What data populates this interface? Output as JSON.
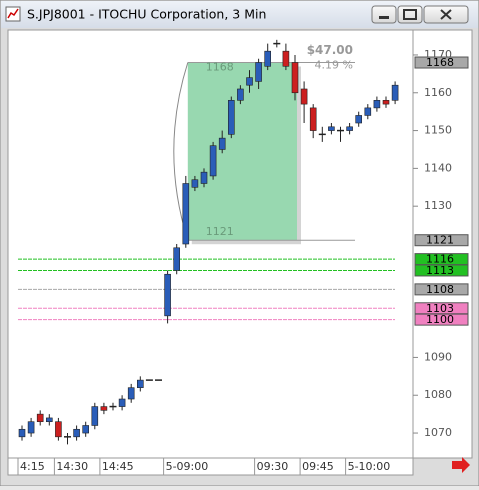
{
  "chart_data": {
    "type": "candlestick",
    "title": "S.JPJ8001 - ITOCHU Corporation, 3 Min",
    "categories": [
      "4:15",
      null,
      null,
      null,
      "14:30",
      null,
      null,
      null,
      null,
      "14:45",
      null,
      null,
      null,
      null,
      null,
      null,
      "5-09:00",
      null,
      null,
      null,
      null,
      null,
      null,
      null,
      null,
      null,
      "09:30",
      null,
      null,
      null,
      null,
      "09:45",
      null,
      null,
      null,
      null,
      "5-10:00",
      null,
      null,
      null,
      null,
      null
    ],
    "open": [
      1069,
      1070,
      1075,
      1073,
      1073,
      1069,
      1069,
      1070,
      1072,
      1077,
      1077,
      1077,
      1079,
      1082,
      1084,
      1084,
      1101,
      1113,
      1120,
      1135,
      1136,
      1138,
      1145,
      1149,
      1158,
      1162,
      1163,
      1167,
      1173,
      1171,
      1168,
      1161,
      1156,
      1149,
      1150,
      1150,
      1150,
      1152,
      1154,
      1156,
      1158,
      1158
    ],
    "high": [
      1072,
      1074,
      1076,
      1075,
      1074,
      1070,
      1072,
      1073,
      1078,
      1078,
      1078,
      1080,
      1083,
      1085,
      1084,
      1084,
      1113,
      1120,
      1138,
      1138,
      1140,
      1147,
      1150,
      1159,
      1162,
      1166,
      1169,
      1173,
      1174,
      1173,
      1170,
      1163,
      1157,
      1151,
      1152,
      1151,
      1152,
      1155,
      1157,
      1159,
      1159,
      1163
    ],
    "low": [
      1068,
      1069,
      1072,
      1072,
      1068,
      1067,
      1068,
      1069,
      1071,
      1075,
      1076,
      1076,
      1078,
      1081,
      1084,
      1084,
      1099,
      1112,
      1119,
      1134,
      1135,
      1137,
      1144,
      1148,
      1157,
      1160,
      1161,
      1166,
      1172,
      1166,
      1158,
      1152,
      1148,
      1147,
      1149,
      1147,
      1149,
      1151,
      1153,
      1155,
      1156,
      1157
    ],
    "close": [
      1071,
      1073,
      1073,
      1074,
      1069,
      1069,
      1071,
      1072,
      1077,
      1076,
      1077,
      1079,
      1082,
      1084,
      1084,
      1084,
      1112,
      1119,
      1136,
      1137,
      1139,
      1146,
      1148,
      1158,
      1161,
      1164,
      1168,
      1171,
      1173,
      1167,
      1160,
      1157,
      1150,
      1149,
      1151,
      1150,
      1151,
      1154,
      1156,
      1158,
      1157,
      1162
    ],
    "up_color": "#2a5db8",
    "down_color": "#cc1f1f",
    "ylim": [
      1063.4,
      1176.6
    ],
    "yticks": [
      1070,
      1080,
      1090,
      1130,
      1140,
      1150,
      1160,
      1170
    ],
    "measure": {
      "start": 1121,
      "end": 1168,
      "change": "$47.00",
      "percent": "4.19 %"
    },
    "levels": [
      {
        "value": 1168,
        "color": "#a8a8a8",
        "line": false
      },
      {
        "value": 1121,
        "color": "#a8a8a8",
        "line": false
      },
      {
        "value": 1116,
        "color": "#22c022",
        "line": true
      },
      {
        "value": 1113,
        "color": "#22c022",
        "line": true
      },
      {
        "value": 1108,
        "color": "#a8a8a8",
        "line": true
      },
      {
        "value": 1103,
        "color": "#f080c0",
        "line": true
      },
      {
        "value": 1100,
        "color": "#f080c0",
        "line": true
      }
    ]
  }
}
